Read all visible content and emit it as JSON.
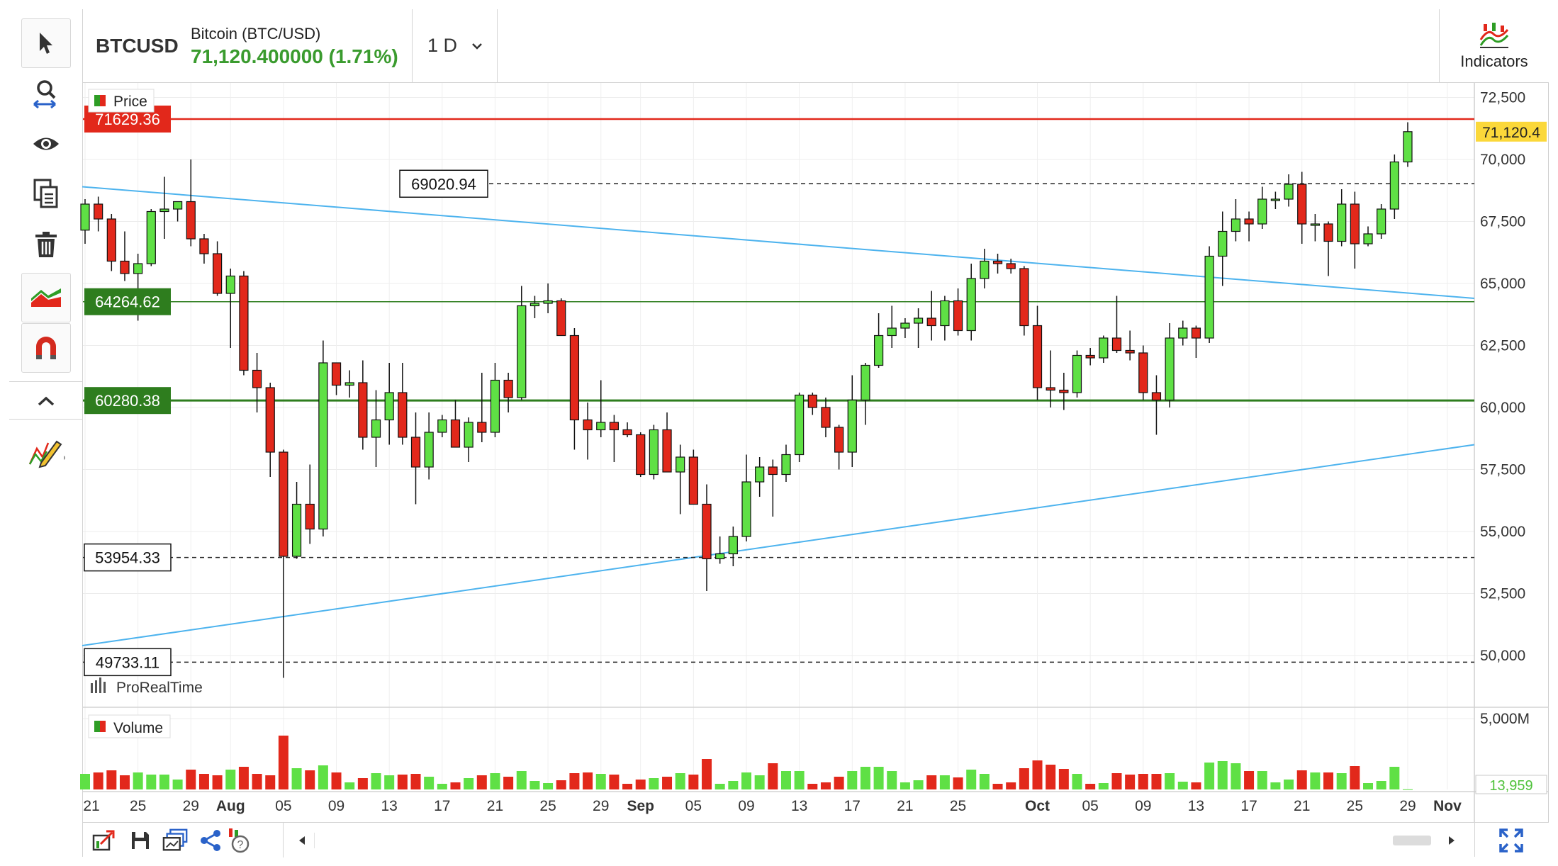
{
  "header": {
    "symbol": "BTCUSD",
    "name": "Bitcoin (BTC/USD)",
    "price_change": "71,120.400000 (1.71%)",
    "timeframe": "1 D",
    "indicators_label": "Indicators"
  },
  "toolbar_icons": [
    "cursor-icon",
    "zoom-icon",
    "eye-icon",
    "copy-icon",
    "trash-icon",
    "trend-icon",
    "magnet-icon",
    "chevron-up-icon",
    "drawing-tools-icon"
  ],
  "colors": {
    "up": "#5fe045",
    "down": "#e2281b",
    "resistance": "#e2281b",
    "support": "#2e7d1e",
    "trendline": "#4db3ee",
    "price_positive": "#3a9b2e",
    "current_price_bg": "#fbd83a"
  },
  "chart_data": {
    "type": "candlestick",
    "instrument": "BTCUSD",
    "timeframe": "1 D",
    "panel_labels": {
      "price": "Price",
      "volume": "Volume"
    },
    "watermark": "ProRealTime",
    "price_axis": {
      "ylim": [
        48000,
        73000
      ],
      "ticks": [
        50000,
        52500,
        55000,
        57500,
        60000,
        62500,
        65000,
        67500,
        70000,
        72500
      ],
      "tick_labels": [
        "50,000",
        "52,500",
        "55,000",
        "57,500",
        "60,000",
        "62,500",
        "65,000",
        "67,500",
        "70,000",
        "72,500"
      ]
    },
    "volume_axis": {
      "ymax": 5800,
      "tick_label": "5,000M",
      "tick_value": 5000,
      "last_volume_label": "13,959"
    },
    "x_axis": {
      "first_day": "2024-07-21",
      "labels": [
        {
          "date": "2024-07-21",
          "text": "21",
          "bold": false
        },
        {
          "date": "2024-07-25",
          "text": "25",
          "bold": false
        },
        {
          "date": "2024-07-29",
          "text": "29",
          "bold": false
        },
        {
          "date": "2024-08-01",
          "text": "Aug",
          "bold": true
        },
        {
          "date": "2024-08-05",
          "text": "05",
          "bold": false
        },
        {
          "date": "2024-08-09",
          "text": "09",
          "bold": false
        },
        {
          "date": "2024-08-13",
          "text": "13",
          "bold": false
        },
        {
          "date": "2024-08-17",
          "text": "17",
          "bold": false
        },
        {
          "date": "2024-08-21",
          "text": "21",
          "bold": false
        },
        {
          "date": "2024-08-25",
          "text": "25",
          "bold": false
        },
        {
          "date": "2024-08-29",
          "text": "29",
          "bold": false
        },
        {
          "date": "2024-09-01",
          "text": "Sep",
          "bold": true
        },
        {
          "date": "2024-09-05",
          "text": "05",
          "bold": false
        },
        {
          "date": "2024-09-09",
          "text": "09",
          "bold": false
        },
        {
          "date": "2024-09-13",
          "text": "13",
          "bold": false
        },
        {
          "date": "2024-09-17",
          "text": "17",
          "bold": false
        },
        {
          "date": "2024-09-21",
          "text": "21",
          "bold": false
        },
        {
          "date": "2024-09-25",
          "text": "25",
          "bold": false
        },
        {
          "date": "2024-10-01",
          "text": "Oct",
          "bold": true
        },
        {
          "date": "2024-10-05",
          "text": "05",
          "bold": false
        },
        {
          "date": "2024-10-09",
          "text": "09",
          "bold": false
        },
        {
          "date": "2024-10-13",
          "text": "13",
          "bold": false
        },
        {
          "date": "2024-10-17",
          "text": "17",
          "bold": false
        },
        {
          "date": "2024-10-21",
          "text": "21",
          "bold": false
        },
        {
          "date": "2024-10-25",
          "text": "25",
          "bold": false
        },
        {
          "date": "2024-10-29",
          "text": "29",
          "bold": false
        },
        {
          "date": "2024-11-01",
          "text": "Nov",
          "bold": true
        }
      ]
    },
    "candles": [
      {
        "date": "2024-07-21",
        "o": 67150,
        "h": 68400,
        "l": 66600,
        "c": 68200,
        "v": 1100
      },
      {
        "date": "2024-07-22",
        "o": 68200,
        "h": 68500,
        "l": 67100,
        "c": 67600,
        "v": 1200
      },
      {
        "date": "2024-07-23",
        "o": 67600,
        "h": 67800,
        "l": 65500,
        "c": 65900,
        "v": 1350
      },
      {
        "date": "2024-07-24",
        "o": 65900,
        "h": 67100,
        "l": 65100,
        "c": 65400,
        "v": 1000
      },
      {
        "date": "2024-07-25",
        "o": 65400,
        "h": 66200,
        "l": 63500,
        "c": 65800,
        "v": 1200
      },
      {
        "date": "2024-07-26",
        "o": 65800,
        "h": 68000,
        "l": 65700,
        "c": 67900,
        "v": 1050
      },
      {
        "date": "2024-07-27",
        "o": 67900,
        "h": 69300,
        "l": 66800,
        "c": 68000,
        "v": 1050
      },
      {
        "date": "2024-07-28",
        "o": 68000,
        "h": 68300,
        "l": 67500,
        "c": 68300,
        "v": 700
      },
      {
        "date": "2024-07-29",
        "o": 68300,
        "h": 70000,
        "l": 66500,
        "c": 66800,
        "v": 1400
      },
      {
        "date": "2024-07-30",
        "o": 66800,
        "h": 67000,
        "l": 65800,
        "c": 66200,
        "v": 1100
      },
      {
        "date": "2024-07-31",
        "o": 66200,
        "h": 66700,
        "l": 64500,
        "c": 64600,
        "v": 1000
      },
      {
        "date": "2024-08-01",
        "o": 64600,
        "h": 65600,
        "l": 62400,
        "c": 65300,
        "v": 1400
      },
      {
        "date": "2024-08-02",
        "o": 65300,
        "h": 65500,
        "l": 61300,
        "c": 61500,
        "v": 1600
      },
      {
        "date": "2024-08-03",
        "o": 61500,
        "h": 62200,
        "l": 59800,
        "c": 60800,
        "v": 1100
      },
      {
        "date": "2024-08-04",
        "o": 60800,
        "h": 61000,
        "l": 57200,
        "c": 58200,
        "v": 1000
      },
      {
        "date": "2024-08-05",
        "o": 58200,
        "h": 58300,
        "l": 49100,
        "c": 54000,
        "v": 3800
      },
      {
        "date": "2024-08-06",
        "o": 54000,
        "h": 57000,
        "l": 53900,
        "c": 56100,
        "v": 1500
      },
      {
        "date": "2024-08-07",
        "o": 56100,
        "h": 57700,
        "l": 54500,
        "c": 55100,
        "v": 1350
      },
      {
        "date": "2024-08-08",
        "o": 55100,
        "h": 62700,
        "l": 54800,
        "c": 61800,
        "v": 1700
      },
      {
        "date": "2024-08-09",
        "o": 61800,
        "h": 61800,
        "l": 60500,
        "c": 60900,
        "v": 1200
      },
      {
        "date": "2024-08-10",
        "o": 60900,
        "h": 61500,
        "l": 60400,
        "c": 61000,
        "v": 500
      },
      {
        "date": "2024-08-11",
        "o": 61000,
        "h": 61900,
        "l": 58300,
        "c": 58800,
        "v": 800
      },
      {
        "date": "2024-08-12",
        "o": 58800,
        "h": 60700,
        "l": 57600,
        "c": 59500,
        "v": 1150
      },
      {
        "date": "2024-08-13",
        "o": 59500,
        "h": 61800,
        "l": 58500,
        "c": 60600,
        "v": 1000
      },
      {
        "date": "2024-08-14",
        "o": 60600,
        "h": 61800,
        "l": 58500,
        "c": 58800,
        "v": 1050
      },
      {
        "date": "2024-08-15",
        "o": 58800,
        "h": 59800,
        "l": 56100,
        "c": 57600,
        "v": 1100
      },
      {
        "date": "2024-08-16",
        "o": 57600,
        "h": 59800,
        "l": 57100,
        "c": 59000,
        "v": 900
      },
      {
        "date": "2024-08-17",
        "o": 59000,
        "h": 59700,
        "l": 58800,
        "c": 59500,
        "v": 400
      },
      {
        "date": "2024-08-18",
        "o": 59500,
        "h": 60300,
        "l": 58400,
        "c": 58400,
        "v": 500
      },
      {
        "date": "2024-08-19",
        "o": 58400,
        "h": 59600,
        "l": 57800,
        "c": 59400,
        "v": 800
      },
      {
        "date": "2024-08-20",
        "o": 59400,
        "h": 61400,
        "l": 58600,
        "c": 59000,
        "v": 1000
      },
      {
        "date": "2024-08-21",
        "o": 59000,
        "h": 61800,
        "l": 58800,
        "c": 61100,
        "v": 1150
      },
      {
        "date": "2024-08-22",
        "o": 61100,
        "h": 61400,
        "l": 59800,
        "c": 60400,
        "v": 900
      },
      {
        "date": "2024-08-23",
        "o": 60400,
        "h": 64900,
        "l": 60300,
        "c": 64100,
        "v": 1300
      },
      {
        "date": "2024-08-24",
        "o": 64100,
        "h": 64500,
        "l": 63600,
        "c": 64200,
        "v": 600
      },
      {
        "date": "2024-08-25",
        "o": 64200,
        "h": 65000,
        "l": 63800,
        "c": 64300,
        "v": 450
      },
      {
        "date": "2024-08-26",
        "o": 64300,
        "h": 64400,
        "l": 62900,
        "c": 62900,
        "v": 650
      },
      {
        "date": "2024-08-27",
        "o": 62900,
        "h": 63200,
        "l": 58300,
        "c": 59500,
        "v": 1150
      },
      {
        "date": "2024-08-28",
        "o": 59500,
        "h": 60200,
        "l": 57900,
        "c": 59100,
        "v": 1200
      },
      {
        "date": "2024-08-29",
        "o": 59100,
        "h": 61100,
        "l": 58800,
        "c": 59400,
        "v": 1100
      },
      {
        "date": "2024-08-30",
        "o": 59400,
        "h": 59700,
        "l": 57800,
        "c": 59100,
        "v": 1050
      },
      {
        "date": "2024-08-31",
        "o": 59100,
        "h": 59400,
        "l": 58800,
        "c": 58900,
        "v": 400
      },
      {
        "date": "2024-09-01",
        "o": 58900,
        "h": 59000,
        "l": 57200,
        "c": 57300,
        "v": 700
      },
      {
        "date": "2024-09-02",
        "o": 57300,
        "h": 59300,
        "l": 57100,
        "c": 59100,
        "v": 800
      },
      {
        "date": "2024-09-03",
        "o": 59100,
        "h": 59800,
        "l": 57400,
        "c": 57400,
        "v": 900
      },
      {
        "date": "2024-09-04",
        "o": 57400,
        "h": 58500,
        "l": 55700,
        "c": 58000,
        "v": 1150
      },
      {
        "date": "2024-09-05",
        "o": 58000,
        "h": 58300,
        "l": 56100,
        "c": 56100,
        "v": 1050
      },
      {
        "date": "2024-09-06",
        "o": 56100,
        "h": 56900,
        "l": 52600,
        "c": 53900,
        "v": 2150
      },
      {
        "date": "2024-09-07",
        "o": 53900,
        "h": 54800,
        "l": 53700,
        "c": 54100,
        "v": 400
      },
      {
        "date": "2024-09-08",
        "o": 54100,
        "h": 55200,
        "l": 53600,
        "c": 54800,
        "v": 600
      },
      {
        "date": "2024-09-09",
        "o": 54800,
        "h": 58100,
        "l": 54600,
        "c": 57000,
        "v": 1200
      },
      {
        "date": "2024-09-10",
        "o": 57000,
        "h": 58000,
        "l": 56400,
        "c": 57600,
        "v": 1000
      },
      {
        "date": "2024-09-11",
        "o": 57600,
        "h": 57900,
        "l": 55600,
        "c": 57300,
        "v": 1850
      },
      {
        "date": "2024-09-12",
        "o": 57300,
        "h": 58500,
        "l": 57000,
        "c": 58100,
        "v": 1300
      },
      {
        "date": "2024-09-13",
        "o": 58100,
        "h": 60600,
        "l": 57800,
        "c": 60500,
        "v": 1300
      },
      {
        "date": "2024-09-14",
        "o": 60500,
        "h": 60600,
        "l": 59700,
        "c": 60000,
        "v": 400
      },
      {
        "date": "2024-09-15",
        "o": 60000,
        "h": 60400,
        "l": 58800,
        "c": 59200,
        "v": 500
      },
      {
        "date": "2024-09-16",
        "o": 59200,
        "h": 59300,
        "l": 57500,
        "c": 58200,
        "v": 900
      },
      {
        "date": "2024-09-17",
        "o": 58200,
        "h": 61300,
        "l": 57600,
        "c": 60300,
        "v": 1300
      },
      {
        "date": "2024-09-18",
        "o": 60300,
        "h": 61800,
        "l": 59300,
        "c": 61700,
        "v": 1600
      },
      {
        "date": "2024-09-19",
        "o": 61700,
        "h": 63800,
        "l": 61600,
        "c": 62900,
        "v": 1600
      },
      {
        "date": "2024-09-20",
        "o": 62900,
        "h": 64100,
        "l": 62400,
        "c": 63200,
        "v": 1300
      },
      {
        "date": "2024-09-21",
        "o": 63200,
        "h": 63600,
        "l": 62800,
        "c": 63400,
        "v": 500
      },
      {
        "date": "2024-09-22",
        "o": 63400,
        "h": 64000,
        "l": 62400,
        "c": 63600,
        "v": 650
      },
      {
        "date": "2024-09-23",
        "o": 63600,
        "h": 64700,
        "l": 62700,
        "c": 63300,
        "v": 1000
      },
      {
        "date": "2024-09-24",
        "o": 63300,
        "h": 64500,
        "l": 62700,
        "c": 64300,
        "v": 1000
      },
      {
        "date": "2024-09-25",
        "o": 64300,
        "h": 64800,
        "l": 62900,
        "c": 63100,
        "v": 850
      },
      {
        "date": "2024-09-26",
        "o": 63100,
        "h": 65800,
        "l": 62700,
        "c": 65200,
        "v": 1400
      },
      {
        "date": "2024-09-27",
        "o": 65200,
        "h": 66400,
        "l": 64800,
        "c": 65900,
        "v": 1100
      },
      {
        "date": "2024-09-28",
        "o": 65900,
        "h": 66200,
        "l": 65400,
        "c": 65800,
        "v": 400
      },
      {
        "date": "2024-09-29",
        "o": 65800,
        "h": 66000,
        "l": 65400,
        "c": 65600,
        "v": 500
      },
      {
        "date": "2024-09-30",
        "o": 65600,
        "h": 65700,
        "l": 62900,
        "c": 63300,
        "v": 1500
      },
      {
        "date": "2024-10-01",
        "o": 63300,
        "h": 64100,
        "l": 60300,
        "c": 60800,
        "v": 2050
      },
      {
        "date": "2024-10-02",
        "o": 60800,
        "h": 62300,
        "l": 60000,
        "c": 60700,
        "v": 1750
      },
      {
        "date": "2024-10-03",
        "o": 60700,
        "h": 61400,
        "l": 59900,
        "c": 60600,
        "v": 1450
      },
      {
        "date": "2024-10-04",
        "o": 60600,
        "h": 62300,
        "l": 60400,
        "c": 62100,
        "v": 1100
      },
      {
        "date": "2024-10-05",
        "o": 62100,
        "h": 62400,
        "l": 61700,
        "c": 62000,
        "v": 400
      },
      {
        "date": "2024-10-06",
        "o": 62000,
        "h": 62900,
        "l": 61800,
        "c": 62800,
        "v": 450
      },
      {
        "date": "2024-10-07",
        "o": 62800,
        "h": 64500,
        "l": 62200,
        "c": 62300,
        "v": 1150
      },
      {
        "date": "2024-10-08",
        "o": 62300,
        "h": 63100,
        "l": 61900,
        "c": 62200,
        "v": 1050
      },
      {
        "date": "2024-10-09",
        "o": 62200,
        "h": 62500,
        "l": 60300,
        "c": 60600,
        "v": 1100
      },
      {
        "date": "2024-10-10",
        "o": 60600,
        "h": 61300,
        "l": 58900,
        "c": 60300,
        "v": 1100
      },
      {
        "date": "2024-10-11",
        "o": 60300,
        "h": 63400,
        "l": 60000,
        "c": 62800,
        "v": 1150
      },
      {
        "date": "2024-10-12",
        "o": 62800,
        "h": 63500,
        "l": 62500,
        "c": 63200,
        "v": 550
      },
      {
        "date": "2024-10-13",
        "o": 63200,
        "h": 63300,
        "l": 62000,
        "c": 62800,
        "v": 500
      },
      {
        "date": "2024-10-14",
        "o": 62800,
        "h": 66500,
        "l": 62600,
        "c": 66100,
        "v": 1900
      },
      {
        "date": "2024-10-15",
        "o": 66100,
        "h": 67900,
        "l": 64900,
        "c": 67100,
        "v": 2000
      },
      {
        "date": "2024-10-16",
        "o": 67100,
        "h": 68400,
        "l": 66700,
        "c": 67600,
        "v": 1850
      },
      {
        "date": "2024-10-17",
        "o": 67600,
        "h": 67900,
        "l": 66700,
        "c": 67400,
        "v": 1300
      },
      {
        "date": "2024-10-18",
        "o": 67400,
        "h": 68900,
        "l": 67200,
        "c": 68400,
        "v": 1300
      },
      {
        "date": "2024-10-19",
        "o": 68400,
        "h": 68700,
        "l": 68000,
        "c": 68400,
        "v": 500
      },
      {
        "date": "2024-10-20",
        "o": 68400,
        "h": 69400,
        "l": 68100,
        "c": 69000,
        "v": 700
      },
      {
        "date": "2024-10-21",
        "o": 69000,
        "h": 69500,
        "l": 66600,
        "c": 67400,
        "v": 1350
      },
      {
        "date": "2024-10-22",
        "o": 67400,
        "h": 67800,
        "l": 66700,
        "c": 67400,
        "v": 1200
      },
      {
        "date": "2024-10-23",
        "o": 67400,
        "h": 67500,
        "l": 65300,
        "c": 66700,
        "v": 1200
      },
      {
        "date": "2024-10-24",
        "o": 66700,
        "h": 68800,
        "l": 66500,
        "c": 68200,
        "v": 1150
      },
      {
        "date": "2024-10-25",
        "o": 68200,
        "h": 68700,
        "l": 65600,
        "c": 66600,
        "v": 1650
      },
      {
        "date": "2024-10-26",
        "o": 66600,
        "h": 67300,
        "l": 66500,
        "c": 67000,
        "v": 450
      },
      {
        "date": "2024-10-27",
        "o": 67000,
        "h": 68200,
        "l": 66800,
        "c": 68000,
        "v": 600
      },
      {
        "date": "2024-10-28",
        "o": 68000,
        "h": 70200,
        "l": 67600,
        "c": 69900,
        "v": 1600
      },
      {
        "date": "2024-10-29",
        "o": 69900,
        "h": 71500,
        "l": 69700,
        "c": 71120,
        "v": 14
      }
    ],
    "horizontal_levels": [
      {
        "price": 71629.36,
        "label": "71629.36",
        "style": "resistance"
      },
      {
        "price": 69020.94,
        "label": "69020.94",
        "style": "dashed-box-mid"
      },
      {
        "price": 64264.62,
        "label": "64264.62",
        "style": "support-thin"
      },
      {
        "price": 60280.38,
        "label": "60280.38",
        "style": "support"
      },
      {
        "price": 53954.33,
        "label": "53954.33",
        "style": "dashed-box"
      },
      {
        "price": 49733.11,
        "label": "49733.11",
        "style": "dashed-box"
      }
    ],
    "trendlines": [
      {
        "from": {
          "date": "2024-07-21",
          "price": 68900
        },
        "to": {
          "date": "2024-11-01",
          "price": 64400
        }
      },
      {
        "from": {
          "date": "2024-07-21",
          "price": 50400
        },
        "to": {
          "date": "2024-11-01",
          "price": 58500
        }
      }
    ],
    "current_price_label": "71,120.4"
  }
}
